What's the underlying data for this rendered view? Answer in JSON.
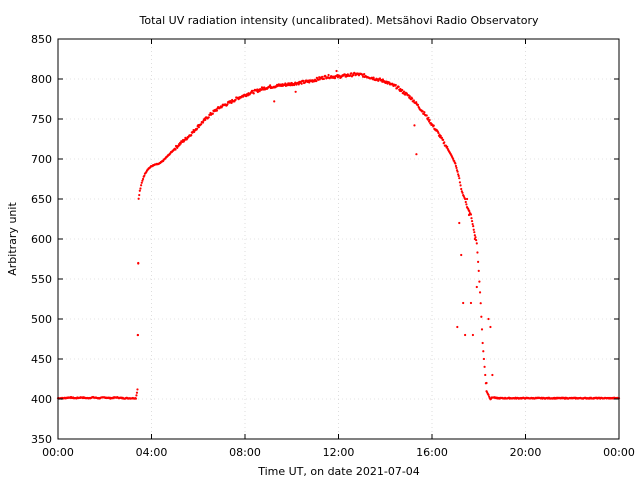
{
  "chart_data": {
    "type": "scatter",
    "title": "Total UV radiation intensity (uncalibrated). Metsähovi Radio Observatory",
    "xlabel": "Time UT, on date 2021-07-04",
    "ylabel": "Arbitrary unit",
    "xlim": [
      "00:00",
      "24:00"
    ],
    "ylim": [
      350,
      850
    ],
    "x_ticks": [
      "00:00",
      "04:00",
      "08:00",
      "12:00",
      "16:00",
      "20:00",
      "00:00"
    ],
    "y_ticks": [
      "350",
      "400",
      "450",
      "500",
      "550",
      "600",
      "650",
      "700",
      "750",
      "800",
      "850"
    ],
    "grid": true,
    "legend": "none",
    "marker_color": "#ff0000",
    "series": [
      {
        "x": [
          "00:00",
          "00:15",
          "00:30",
          "00:45",
          "01:00",
          "01:15",
          "01:30",
          "01:45",
          "02:00",
          "02:15",
          "02:30",
          "02:45",
          "03:00",
          "03:20",
          "03:24",
          "03:25",
          "03:26",
          "03:27",
          "03:30",
          "03:35",
          "03:40",
          "03:45",
          "03:50",
          "04:00",
          "04:10",
          "04:20",
          "04:30",
          "04:40",
          "04:50",
          "05:00",
          "05:15",
          "05:30",
          "05:45",
          "06:00",
          "06:15",
          "06:30",
          "06:45",
          "07:00",
          "07:15",
          "07:30",
          "07:45",
          "08:00",
          "08:15",
          "08:30",
          "08:45",
          "09:00",
          "09:15",
          "09:30",
          "09:45",
          "10:00",
          "10:15",
          "10:30",
          "10:45",
          "11:00",
          "11:15",
          "11:30",
          "11:45",
          "12:00",
          "12:15",
          "12:30",
          "12:45",
          "13:00",
          "13:15",
          "13:30",
          "13:45",
          "14:00",
          "14:15",
          "14:30",
          "14:45",
          "15:00",
          "15:15",
          "15:30",
          "15:45",
          "16:00",
          "16:15",
          "16:30",
          "16:45",
          "17:00",
          "17:10",
          "17:15",
          "17:20",
          "17:25",
          "17:30",
          "17:40",
          "17:50",
          "17:55",
          "18:00",
          "18:05",
          "18:10",
          "18:15",
          "18:20",
          "18:25",
          "18:30",
          "18:35",
          "18:40",
          "18:45",
          "19:00",
          "19:30",
          "20:00",
          "21:00",
          "22:00",
          "23:00",
          "24:00"
        ],
        "y": [
          401,
          401,
          402,
          401,
          402,
          401,
          402,
          401,
          402,
          401,
          402,
          401,
          401,
          401,
          412,
          480,
          570,
          650,
          660,
          670,
          678,
          683,
          687,
          691,
          693,
          694,
          698,
          703,
          708,
          713,
          720,
          726,
          733,
          741,
          748,
          755,
          761,
          766,
          769,
          773,
          777,
          780,
          783,
          785,
          788,
          790,
          791,
          792,
          793,
          794,
          795,
          796,
          797,
          799,
          801,
          803,
          803,
          803,
          804,
          805,
          806,
          805,
          803,
          801,
          799,
          797,
          793,
          790,
          784,
          779,
          772,
          763,
          754,
          743,
          733,
          721,
          709,
          694,
          676,
          662,
          655,
          650,
          640,
          630,
          605,
          595,
          560,
          520,
          470,
          440,
          410,
          405,
          400,
          402,
          402,
          401,
          401,
          401,
          401,
          401,
          401,
          401,
          401
        ]
      },
      {
        "name_hidden": "",
        "x": [
          "03:25",
          "03:26",
          "09:15",
          "10:10",
          "11:55",
          "15:15",
          "15:20",
          "17:05",
          "17:10",
          "17:15",
          "17:20",
          "17:25",
          "17:30",
          "17:35",
          "17:40",
          "17:45",
          "17:50",
          "17:55",
          "18:20",
          "18:25",
          "18:30",
          "18:35"
        ],
        "y": [
          480,
          570,
          772,
          784,
          810,
          742,
          706,
          490,
          620,
          580,
          520,
          480,
          650,
          630,
          520,
          480,
          600,
          540,
          420,
          500,
          490,
          430
        ]
      }
    ]
  }
}
